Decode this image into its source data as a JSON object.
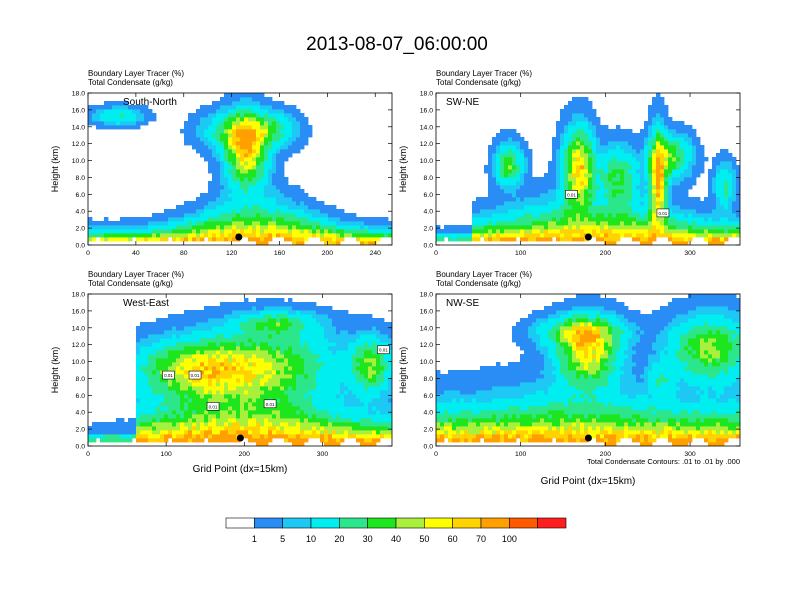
{
  "title": "2013-08-07_06:00:00",
  "fill_colors": [
    "#ffffff",
    "#2a8cf5",
    "#1ec8f5",
    "#00eef0",
    "#2ce68c",
    "#1ee61e",
    "#a8f03c",
    "#ffff00",
    "#ffd200",
    "#ffa000",
    "#ff5a00",
    "#ff1e1e"
  ],
  "colorbar": {
    "labels": [
      "1",
      "5",
      "10",
      "20",
      "30",
      "40",
      "50",
      "60",
      "70",
      "100"
    ]
  },
  "contour_note": "Total Condensate Contours: .01 to .01 by .000",
  "chart_data": [
    {
      "type": "heatmap",
      "header1": "Boundary Layer Tracer",
      "units1": "(%)",
      "header2": "Total Condensate",
      "units2": "(g/kg)",
      "panel_label": "South-North",
      "xlabel": "",
      "ylabel": "Height (km)",
      "xlim": [
        0,
        254
      ],
      "ylim": [
        0,
        18
      ],
      "xticks": [
        0,
        40,
        80,
        120,
        160,
        200,
        240
      ],
      "yticks": [
        "0.0",
        "2.0",
        "4.0",
        "6.0",
        "8.0",
        "10.0",
        "12.0",
        "14.0",
        "16.0",
        "18.0"
      ],
      "marker_x": 126,
      "contour_labels": []
    },
    {
      "type": "heatmap",
      "header1": "Boundary Layer Tracer",
      "units1": "(%)",
      "header2": "Total Condensate",
      "units2": "(g/kg)",
      "panel_label": "SW-NE",
      "xlabel": "",
      "ylabel": "Height (km)",
      "xlim": [
        0,
        359
      ],
      "ylim": [
        0,
        18
      ],
      "xticks": [
        0,
        100,
        200,
        300
      ],
      "yticks": [
        "0.0",
        "2.0",
        "4.0",
        "6.0",
        "8.0",
        "10.0",
        "12.0",
        "14.0",
        "16.0",
        "18.0"
      ],
      "marker_x": 180,
      "contour_labels": [
        {
          "x": 160,
          "y": 6.0,
          "text": "0.01"
        },
        {
          "x": 268,
          "y": 3.8,
          "text": "0.01"
        }
      ]
    },
    {
      "type": "heatmap",
      "header1": "Boundary Layer Tracer",
      "units1": "(%)",
      "header2": "Total Condensate",
      "units2": "(g/kg)",
      "panel_label": "West-East",
      "xlabel": "Grid Point (dx=15km)",
      "ylabel": "Height (km)",
      "xlim": [
        0,
        389
      ],
      "ylim": [
        0,
        18
      ],
      "xticks": [
        0,
        100,
        200,
        300
      ],
      "yticks": [
        "0.0",
        "2.0",
        "4.0",
        "6.0",
        "8.0",
        "10.0",
        "12.0",
        "14.0",
        "16.0",
        "18.0"
      ],
      "marker_x": 195,
      "contour_labels": [
        {
          "x": 103,
          "y": 8.4,
          "text": "0.01"
        },
        {
          "x": 137,
          "y": 8.4,
          "text": "0.01"
        },
        {
          "x": 160,
          "y": 4.7,
          "text": "0.01"
        },
        {
          "x": 233,
          "y": 5.0,
          "text": "0.01"
        },
        {
          "x": 378,
          "y": 11.4,
          "text": "0.01"
        }
      ]
    },
    {
      "type": "heatmap",
      "header1": "Boundary Layer Tracer",
      "units1": "(%)",
      "header2": "Total Condensate",
      "units2": "(g/kg)",
      "panel_label": "NW-SE",
      "xlabel": "Grid Point (dx=15km)",
      "ylabel": "Height (km)",
      "xlim": [
        0,
        359
      ],
      "ylim": [
        0,
        18
      ],
      "xticks": [
        0,
        100,
        200,
        300
      ],
      "yticks": [
        "0.0",
        "2.0",
        "4.0",
        "6.0",
        "8.0",
        "10.0",
        "12.0",
        "14.0",
        "16.0",
        "18.0"
      ],
      "marker_x": 180,
      "contour_labels": []
    }
  ]
}
